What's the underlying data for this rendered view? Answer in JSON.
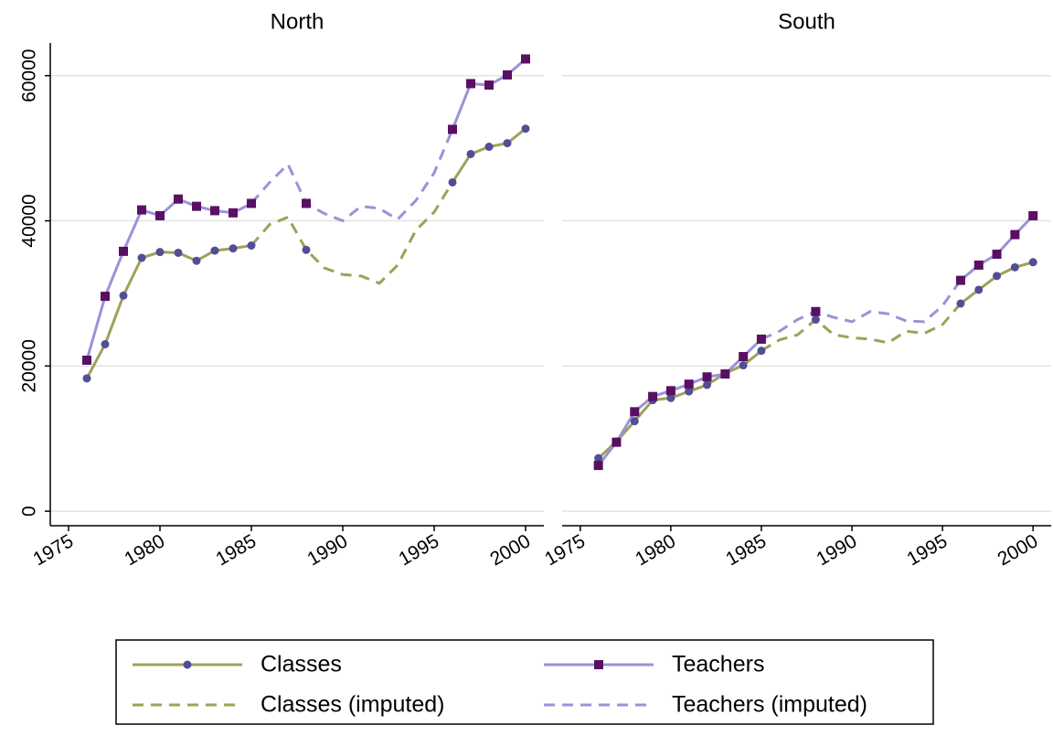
{
  "chart_data": [
    {
      "type": "line",
      "title": "North",
      "x": [
        1976,
        1977,
        1978,
        1979,
        1980,
        1981,
        1982,
        1983,
        1984,
        1985,
        1986,
        1987,
        1988,
        1989,
        1990,
        1991,
        1992,
        1993,
        1994,
        1995,
        1996,
        1997,
        1998,
        1999,
        2000
      ],
      "xlim": [
        1974,
        2001
      ],
      "xticks": [
        1975,
        1980,
        1985,
        1990,
        1995,
        2000
      ],
      "ylim": [
        -2000,
        64500
      ],
      "yticks": [
        0,
        20000,
        40000,
        60000
      ],
      "grid": true,
      "series": [
        {
          "name": "Classes",
          "color": "#a0a05a",
          "marker": "circle",
          "marker_color": "#4f4f96",
          "dashed": false,
          "values": [
            18300,
            23000,
            29700,
            34900,
            35700,
            35600,
            34500,
            35900,
            36200,
            36600,
            null,
            null,
            36000,
            null,
            null,
            null,
            null,
            null,
            null,
            null,
            45300,
            49200,
            50200,
            50700,
            52700
          ]
        },
        {
          "name": "Teachers",
          "color": "#9b92d8",
          "marker": "square",
          "marker_color": "#5a0f63",
          "dashed": false,
          "values": [
            20800,
            29600,
            35800,
            41500,
            40700,
            43000,
            42000,
            41400,
            41100,
            42400,
            null,
            null,
            42400,
            null,
            null,
            null,
            null,
            null,
            null,
            null,
            52600,
            58900,
            58700,
            60100,
            62300
          ]
        },
        {
          "name": "Classes (imputed)",
          "color": "#a0a05a",
          "dashed": true,
          "values": [
            null,
            null,
            null,
            null,
            null,
            null,
            null,
            null,
            null,
            36600,
            39500,
            40500,
            36000,
            33500,
            32600,
            32400,
            31400,
            33900,
            38700,
            41200,
            45300,
            null,
            null,
            null,
            null
          ]
        },
        {
          "name": "Teachers (imputed)",
          "color": "#9b92d8",
          "dashed": true,
          "values": [
            null,
            null,
            null,
            null,
            null,
            null,
            null,
            null,
            null,
            42400,
            45300,
            47800,
            42400,
            41000,
            40000,
            42000,
            41700,
            40200,
            42800,
            46600,
            52600,
            null,
            null,
            null,
            null
          ]
        }
      ]
    },
    {
      "type": "line",
      "title": "South",
      "x": [
        1976,
        1977,
        1978,
        1979,
        1980,
        1981,
        1982,
        1983,
        1984,
        1985,
        1986,
        1987,
        1988,
        1989,
        1990,
        1991,
        1992,
        1993,
        1994,
        1995,
        1996,
        1997,
        1998,
        1999,
        2000
      ],
      "xlim": [
        1974,
        2001
      ],
      "xticks": [
        1975,
        1980,
        1985,
        1990,
        1995,
        2000
      ],
      "ylim": [
        -2000,
        64500
      ],
      "yticks": [
        0,
        20000,
        40000,
        60000
      ],
      "grid": true,
      "series": [
        {
          "name": "Classes",
          "color": "#a0a05a",
          "marker": "circle",
          "marker_color": "#4f4f96",
          "dashed": false,
          "values": [
            7300,
            9600,
            12400,
            15300,
            15600,
            16500,
            17400,
            19000,
            20100,
            22100,
            null,
            null,
            26400,
            null,
            null,
            null,
            null,
            null,
            null,
            null,
            28600,
            30500,
            32400,
            33600,
            34300
          ]
        },
        {
          "name": "Teachers",
          "color": "#9b92d8",
          "marker": "square",
          "marker_color": "#5a0f63",
          "dashed": false,
          "values": [
            6300,
            9500,
            13700,
            15800,
            16600,
            17500,
            18500,
            18900,
            21300,
            23700,
            null,
            null,
            27500,
            null,
            null,
            null,
            null,
            null,
            null,
            null,
            31800,
            33900,
            35400,
            38100,
            40700
          ]
        },
        {
          "name": "Classes (imputed)",
          "color": "#a0a05a",
          "dashed": true,
          "values": [
            null,
            null,
            null,
            null,
            null,
            null,
            null,
            null,
            null,
            22100,
            23600,
            24300,
            26400,
            24300,
            23900,
            23700,
            23200,
            24800,
            24500,
            25700,
            28600,
            null,
            null,
            null,
            null
          ]
        },
        {
          "name": "Teachers (imputed)",
          "color": "#9b92d8",
          "dashed": true,
          "values": [
            null,
            null,
            null,
            null,
            null,
            null,
            null,
            null,
            null,
            23700,
            24800,
            26400,
            27500,
            26700,
            26100,
            27500,
            27200,
            26200,
            26100,
            28300,
            31800,
            null,
            null,
            null,
            null
          ]
        }
      ]
    }
  ]
}
